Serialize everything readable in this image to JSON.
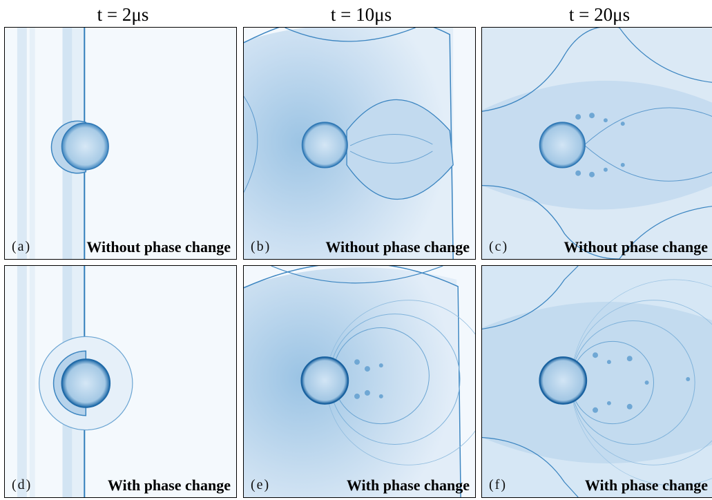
{
  "columns": [
    {
      "title": "t = 2μs"
    },
    {
      "title": "t = 10μs"
    },
    {
      "title": "t = 20μs"
    }
  ],
  "panels": [
    {
      "label": "(a)",
      "caption": "Without phase change"
    },
    {
      "label": "(b)",
      "caption": "Without phase change"
    },
    {
      "label": "(c)",
      "caption": "Without phase change"
    },
    {
      "label": "(d)",
      "caption": "With phase change"
    },
    {
      "label": "(e)",
      "caption": "With phase change"
    },
    {
      "label": "(f)",
      "caption": "With phase change"
    }
  ],
  "colors": {
    "shock": "#2a7ab8",
    "fill": "#cfe2f3",
    "droplet": "#9cc3e3",
    "background": "#f3f8fd"
  }
}
